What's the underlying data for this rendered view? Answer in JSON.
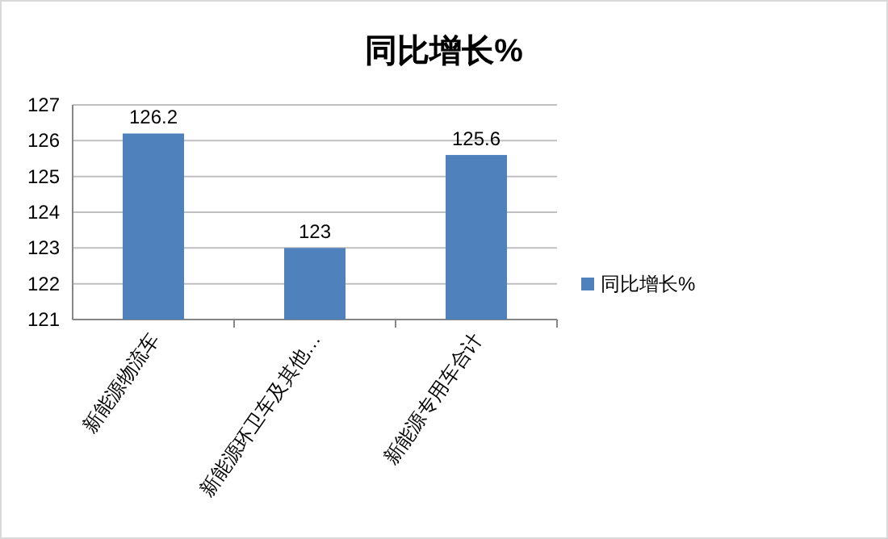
{
  "chart_data": {
    "type": "bar",
    "title": "同比增长%",
    "categories": [
      "新能源物流车",
      "新能源环卫车及其他…",
      "新能源专用车合计"
    ],
    "series": [
      {
        "name": "同比增长%",
        "color": "#4f81bd",
        "values": [
          126.2,
          123,
          125.6
        ]
      }
    ],
    "ylim": [
      121,
      127
    ],
    "yticks": [
      121,
      122,
      123,
      124,
      125,
      126,
      127
    ],
    "grid": "y",
    "legend": "right",
    "data_labels": true
  }
}
